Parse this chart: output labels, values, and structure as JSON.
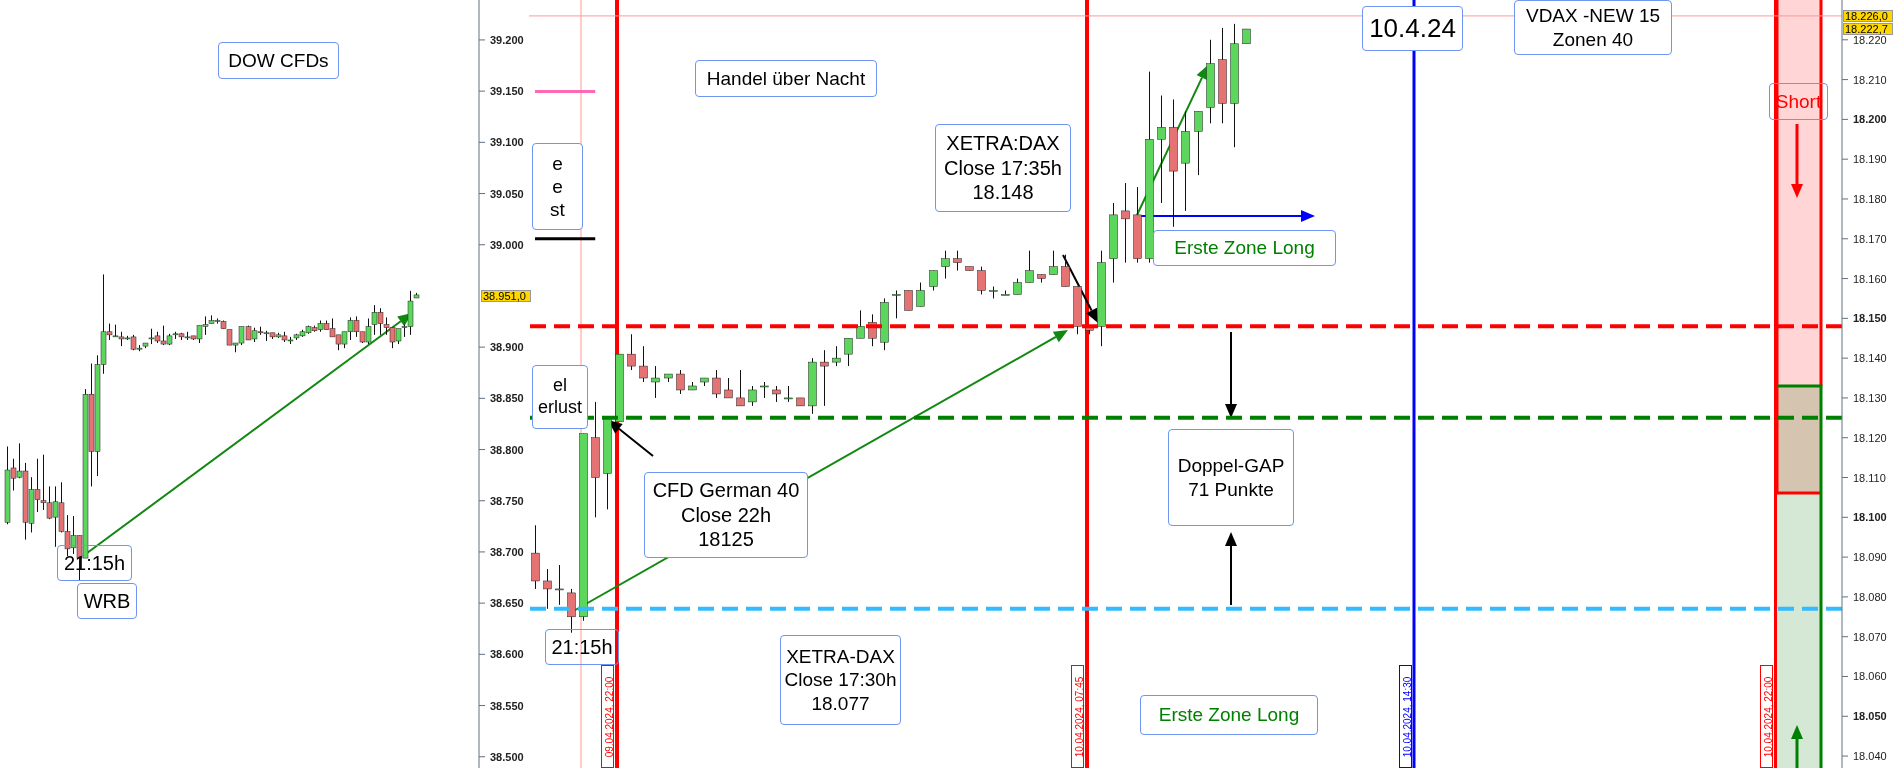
{
  "chart_data": [
    {
      "type": "candlestick",
      "title": "DOW CFDs",
      "tick_labels": "y",
      "categories": [
        null,
        null,
        null,
        null,
        null,
        null,
        null,
        null,
        null,
        null,
        null,
        null,
        null,
        null,
        null,
        null,
        null,
        null,
        null,
        null,
        null,
        null,
        null,
        null,
        null,
        null,
        null,
        null,
        null,
        null,
        null,
        null,
        null,
        null,
        null,
        null,
        null,
        null,
        null,
        null,
        null,
        null,
        null,
        null,
        null,
        null,
        null,
        null,
        null,
        null,
        null,
        null,
        null,
        null,
        null,
        null,
        null,
        null,
        null,
        null,
        null,
        null,
        null,
        null,
        null,
        null,
        null,
        null,
        null,
        null,
        null,
        null,
        null,
        null,
        null,
        null,
        null,
        null,
        null
      ],
      "ohlc": [
        [
          38729,
          38803,
          38727,
          38780
        ],
        [
          38782,
          38791,
          38760,
          38772
        ],
        [
          38773,
          38806,
          38772,
          38779
        ],
        [
          38779,
          38787,
          38712,
          38729
        ],
        [
          38728,
          38773,
          38719,
          38761
        ],
        [
          38761,
          38791,
          38739,
          38751
        ],
        [
          38750,
          38795,
          38741,
          38748
        ],
        [
          38748,
          38764,
          38732,
          38733
        ],
        [
          38734,
          38764,
          38705,
          38749
        ],
        [
          38748,
          38768,
          38719,
          38720
        ],
        [
          38720,
          38736,
          38696,
          38703
        ],
        [
          38704,
          38735,
          38698,
          38716
        ],
        [
          38716,
          38716,
          38672,
          38694
        ],
        [
          38694,
          38859,
          38694,
          38854
        ],
        [
          38854,
          38884,
          38764,
          38798
        ],
        [
          38798,
          38892,
          38774,
          38883
        ],
        [
          38883,
          38971,
          38874,
          38915
        ],
        [
          38915,
          38923,
          38907,
          38912
        ],
        [
          38911,
          38922,
          38910,
          38911
        ],
        [
          38910,
          38915,
          38901,
          38908
        ],
        [
          38909,
          38911,
          38907,
          38909
        ],
        [
          38910,
          38912,
          38897,
          38898
        ],
        [
          38899,
          38902,
          38896,
          38899
        ],
        [
          38901,
          38904,
          38899,
          38904
        ],
        [
          38909,
          38918,
          38903,
          38909
        ],
        [
          38911,
          38915,
          38904,
          38906
        ],
        [
          38906,
          38921,
          38902,
          38903
        ],
        [
          38903,
          38913,
          38902,
          38911
        ],
        [
          38913,
          38915,
          38908,
          38913
        ],
        [
          38913,
          38914,
          38907,
          38910
        ],
        [
          38910,
          38915,
          38907,
          38910
        ],
        [
          38911,
          38911,
          38907,
          38908
        ],
        [
          38908,
          38921,
          38904,
          38921
        ],
        [
          38920,
          38930,
          38912,
          38922
        ],
        [
          38923,
          38931,
          38923,
          38926
        ],
        [
          38926,
          38928,
          38923,
          38926
        ],
        [
          38925,
          38926,
          38918,
          38918
        ],
        [
          38917,
          38917,
          38902,
          38902
        ],
        [
          38902,
          38904,
          38895,
          38904
        ],
        [
          38904,
          38920,
          38902,
          38920
        ],
        [
          38920,
          38921,
          38907,
          38907
        ],
        [
          38908,
          38919,
          38905,
          38916
        ],
        [
          38915,
          38920,
          38912,
          38914
        ],
        [
          38914,
          38916,
          38906,
          38914
        ],
        [
          38914,
          38914,
          38908,
          38910
        ],
        [
          38910,
          38914,
          38909,
          38912
        ],
        [
          38911,
          38915,
          38905,
          38907
        ],
        [
          38907,
          38910,
          38903,
          38907
        ],
        [
          38909,
          38913,
          38907,
          38912
        ],
        [
          38911,
          38917,
          38910,
          38915
        ],
        [
          38914,
          38921,
          38913,
          38920
        ],
        [
          38919,
          38921,
          38915,
          38916
        ],
        [
          38917,
          38926,
          38915,
          38923
        ],
        [
          38923,
          38926,
          38917,
          38917
        ],
        [
          38918,
          38928,
          38910,
          38910
        ],
        [
          38912,
          38912,
          38897,
          38903
        ],
        [
          38903,
          38915,
          38899,
          38915
        ],
        [
          38915,
          38929,
          38907,
          38926
        ],
        [
          38926,
          38930,
          38910,
          38915
        ],
        [
          38915,
          38915,
          38904,
          38905
        ],
        [
          38905,
          38928,
          38903,
          38920
        ],
        [
          38922,
          38941,
          38912,
          38934
        ],
        [
          38934,
          38938,
          38912,
          38923
        ],
        [
          38922,
          38929,
          38912,
          38919
        ],
        [
          38919,
          38919,
          38899,
          38905
        ],
        [
          38906,
          38918,
          38903,
          38918
        ],
        [
          38920,
          38922,
          38910,
          38920
        ],
        [
          38920,
          38955,
          38912,
          38945
        ],
        [
          38948,
          38953,
          38948,
          38951
        ],
        null,
        null,
        null,
        null,
        null,
        null,
        null,
        null,
        null,
        null
      ],
      "ylim": [
        38489,
        39239
      ],
      "yticks": [
        {
          "value": 38500,
          "label": "38.500"
        },
        {
          "value": 38550,
          "label": "38.550"
        },
        {
          "value": 38600,
          "label": "38.600"
        },
        {
          "value": 38650,
          "label": "38.650"
        },
        {
          "value": 38700,
          "label": "38.700"
        },
        {
          "value": 38750,
          "label": "38.750"
        },
        {
          "value": 38800,
          "label": "38.800"
        },
        {
          "value": 38850,
          "label": "38.850"
        },
        {
          "value": 38900,
          "label": "38.900"
        },
        {
          "value": 39000,
          "label": "39.000"
        },
        {
          "value": 39050,
          "label": "39.050"
        },
        {
          "value": 39100,
          "label": "39.100"
        },
        {
          "value": 39150,
          "label": "39.150"
        },
        {
          "value": 39200,
          "label": "39.200"
        }
      ],
      "annotations": [
        "21:15h",
        "WRB",
        "38.951,0"
      ]
    },
    {
      "type": "candlestick",
      "tick_labels": "y",
      "categories": [
        null,
        null,
        null,
        null,
        null,
        null,
        null,
        null,
        null,
        null,
        null,
        null,
        null,
        null,
        null,
        null,
        null,
        null,
        null,
        null,
        null,
        null,
        null,
        null,
        null,
        null,
        null,
        null,
        null,
        null,
        null,
        null,
        null,
        null,
        null,
        null,
        null,
        null,
        null,
        null,
        null,
        null,
        null,
        null,
        null,
        null,
        null,
        null,
        null,
        null,
        null,
        null,
        null,
        null,
        null,
        null,
        null,
        null,
        null,
        null,
        null,
        null,
        null,
        null,
        null,
        null,
        null,
        null,
        null,
        null,
        null,
        null,
        null,
        null,
        null,
        null,
        null,
        null,
        null,
        null,
        null,
        null,
        null,
        null,
        null,
        null,
        null,
        null,
        null,
        null,
        null,
        null,
        null,
        null,
        null,
        null,
        null,
        null,
        null,
        null,
        null,
        null,
        null,
        null,
        null,
        null,
        null,
        null,
        null
      ],
      "ohlc": [
        [
          18091,
          18098,
          18082,
          18084
        ],
        [
          18084,
          18087,
          18077,
          18082
        ],
        [
          18082,
          18088,
          18078,
          18082
        ],
        [
          18081,
          18082,
          18071,
          18075
        ],
        [
          18075,
          18121,
          18074,
          18121
        ],
        [
          18120,
          18129,
          18100,
          18110
        ],
        [
          18111,
          18125,
          18102,
          18125
        ],
        [
          18124,
          18141,
          18124,
          18141
        ],
        [
          18141,
          18146,
          18137,
          18138
        ],
        [
          18138,
          18143,
          18134,
          18135
        ],
        [
          18134,
          18138,
          18130,
          18135
        ],
        [
          18135,
          18136,
          18134,
          18136
        ],
        [
          18136,
          18137,
          18131,
          18132
        ],
        [
          18132,
          18134,
          18132,
          18133
        ],
        [
          18134,
          18135,
          18133,
          18135
        ],
        [
          18135,
          18137,
          18130,
          18131
        ],
        [
          18132,
          18135,
          18130,
          18130
        ],
        [
          18130,
          18137,
          18128,
          18128
        ],
        [
          18129,
          18133,
          18128,
          18132
        ],
        [
          18133,
          18134,
          18130,
          18133
        ],
        [
          18132,
          18133,
          18129,
          18131
        ],
        [
          18130,
          18133,
          18129,
          18130
        ],
        [
          18130,
          18130,
          18128,
          18128
        ],
        [
          18128,
          18140,
          18126,
          18139
        ],
        [
          18139,
          18142,
          18128,
          18138
        ],
        [
          18139,
          18143,
          18138,
          18140
        ],
        [
          18141,
          18145,
          18138,
          18145
        ],
        [
          18145,
          18152,
          18145,
          18148
        ],
        [
          18149,
          18151,
          18143,
          18145
        ],
        [
          18144,
          18155,
          18142,
          18154
        ],
        [
          18156,
          18157,
          18150,
          18156
        ],
        [
          18157,
          18157,
          18152,
          18152
        ],
        [
          18153,
          18159,
          18153,
          18157
        ],
        [
          18158,
          18162,
          18157,
          18162
        ],
        [
          18163,
          18167,
          18160,
          18165
        ],
        [
          18165,
          18167,
          18162,
          18164
        ],
        [
          18163,
          18163,
          18162,
          18162
        ],
        [
          18162,
          18163,
          18156,
          18157
        ],
        [
          18157,
          18158,
          18155,
          18157
        ],
        [
          18156,
          18157,
          18156,
          18156
        ],
        [
          18156,
          18160,
          18156,
          18159
        ],
        [
          18159,
          18167,
          18159,
          18162
        ],
        [
          18161,
          18161,
          18159,
          18160
        ],
        [
          18161,
          18167,
          18161,
          18163
        ],
        [
          18163,
          18166,
          18158,
          18158
        ],
        [
          18158,
          18158,
          18146,
          18148
        ],
        [
          18148,
          18148,
          18146,
          18147
        ],
        [
          18148,
          18167,
          18143,
          18164
        ],
        [
          18165,
          18179,
          18159,
          18176
        ],
        [
          18177,
          18184,
          18164,
          18175
        ],
        [
          18176,
          18183,
          18164,
          18165
        ],
        [
          18165,
          18212,
          18164,
          18195
        ],
        [
          18195,
          18206,
          18179,
          18198
        ],
        [
          18198,
          18205,
          18173,
          18187
        ],
        [
          18189,
          18202,
          18177,
          18197
        ],
        [
          18197,
          18202,
          18186,
          18202
        ],
        [
          18203,
          18220,
          18199,
          18214
        ],
        [
          18215,
          18223,
          18199,
          18204
        ],
        [
          18204,
          18224,
          18193,
          18219
        ],
        [
          18219,
          18222.7,
          18219,
          18222.7
        ],
        null,
        null,
        null,
        null,
        null,
        null,
        null,
        null,
        null,
        null,
        null,
        null,
        null,
        null,
        null,
        null,
        null,
        null,
        null,
        null,
        null,
        null,
        null,
        null,
        null,
        null,
        null,
        null,
        null,
        null,
        null,
        null,
        null,
        null,
        null,
        null,
        null,
        null,
        null,
        null,
        null,
        null,
        null,
        null,
        null,
        null,
        null,
        null,
        null
      ],
      "series": [
        {
          "type": "line",
          "color": "#ff69b4",
          "values": [
            18207,
            18207,
            18207,
            18207,
            18207,
            18207,
            null,
            null,
            null,
            null,
            null,
            null,
            null,
            null,
            null,
            null,
            null,
            null,
            null,
            null,
            null,
            null,
            null,
            null,
            null,
            null,
            null,
            null,
            null,
            null,
            null,
            null,
            null,
            null,
            null,
            null,
            null,
            null,
            null,
            null,
            null,
            null,
            null,
            null,
            null,
            null,
            null,
            null,
            null,
            null,
            null,
            null,
            null,
            null,
            null,
            null,
            null,
            null,
            null,
            null,
            null,
            null,
            null,
            null,
            null,
            null,
            null,
            null,
            null,
            null,
            null,
            null,
            null,
            null,
            null,
            null,
            null,
            null,
            null,
            null,
            null,
            null,
            null,
            null,
            null,
            null,
            null,
            null,
            null,
            null,
            null,
            null,
            null,
            null,
            null,
            null,
            null,
            null,
            null,
            null,
            null,
            null,
            null,
            null,
            null,
            null,
            null,
            null,
            null
          ]
        },
        {
          "type": "line",
          "color": "#000000",
          "values": [
            18170,
            18170,
            18170,
            18170,
            18170,
            18170,
            null,
            null,
            null,
            null,
            null,
            null,
            null,
            null,
            null,
            null,
            null,
            null,
            null,
            null,
            null,
            null,
            null,
            null,
            null,
            null,
            null,
            null,
            null,
            null,
            null,
            null,
            null,
            null,
            null,
            null,
            null,
            null,
            null,
            null,
            null,
            null,
            null,
            null,
            null,
            null,
            null,
            null,
            null,
            null,
            null,
            null,
            null,
            null,
            null,
            null,
            null,
            null,
            null,
            null,
            null,
            null,
            null,
            null,
            null,
            null,
            null,
            null,
            null,
            null,
            null,
            null,
            null,
            null,
            null,
            null,
            null,
            null,
            null,
            null,
            null,
            null,
            null,
            null,
            null,
            null,
            null,
            null,
            null,
            null,
            null,
            null,
            null,
            null,
            null,
            null,
            null,
            null,
            null,
            null,
            null,
            null,
            null,
            null,
            null,
            null,
            null,
            null,
            null
          ]
        }
      ],
      "ylim": [
        18037,
        18230
      ],
      "yticks": [
        {
          "value": 18040,
          "label": "18.040"
        },
        {
          "value": 18050,
          "label": "18.050"
        },
        {
          "value": 18060,
          "label": "18.060"
        },
        {
          "value": 18070,
          "label": "18.070"
        },
        {
          "value": 18080,
          "label": "18.080"
        },
        {
          "value": 18090,
          "label": "18.090"
        },
        {
          "value": 18100,
          "label": "18.100"
        },
        {
          "value": 18110,
          "label": "18.110"
        },
        {
          "value": 18120,
          "label": "18.120"
        },
        {
          "value": 18130,
          "label": "18.130"
        },
        {
          "value": 18140,
          "label": "18.140"
        },
        {
          "value": 18150,
          "label": "18.150"
        },
        {
          "value": 18160,
          "label": "18.160"
        },
        {
          "value": 18170,
          "label": "18.170"
        },
        {
          "value": 18180,
          "label": "18.180"
        },
        {
          "value": 18190,
          "label": "18.190"
        },
        {
          "value": 18200,
          "label": "18.200"
        },
        {
          "value": 18210,
          "label": "18.210"
        },
        {
          "value": 18220,
          "label": "18.220"
        }
      ],
      "ref_lines": [
        {
          "axis": "y",
          "value": 18226,
          "color": "#ff9999"
        },
        {
          "axis": "y",
          "value": 18148,
          "color": "#ff0000",
          "line_style": "dashed"
        },
        {
          "axis": "y",
          "value": 18125,
          "color": "#008000",
          "line_style": "dashed"
        },
        {
          "axis": "y",
          "value": 18077,
          "color": "#33bbff",
          "line_style": "dashed"
        }
      ],
      "annotations": [
        "Handel über Nacht",
        "e\ne\nst",
        "el\nerlust",
        "CFD German 40\nClose 22h\n18125",
        "21:15h",
        "XETRA:DAX\nClose 17:35h\n18.148",
        "Erste Zone Long",
        "Doppel-GAP\n71 Punkte",
        "XETRA-DAX\nClose 17:30h\n18.077",
        "Erste Zone Long",
        "10.4.24",
        "VDAX -NEW 15\nZonen 40",
        "Short",
        "09.04.2024, 22:00",
        "10.04.2024, 07:45",
        "10.04.2024, 14:30",
        "10.04.2024, 22:00",
        "18.226,0",
        "18.222,7"
      ]
    }
  ]
}
